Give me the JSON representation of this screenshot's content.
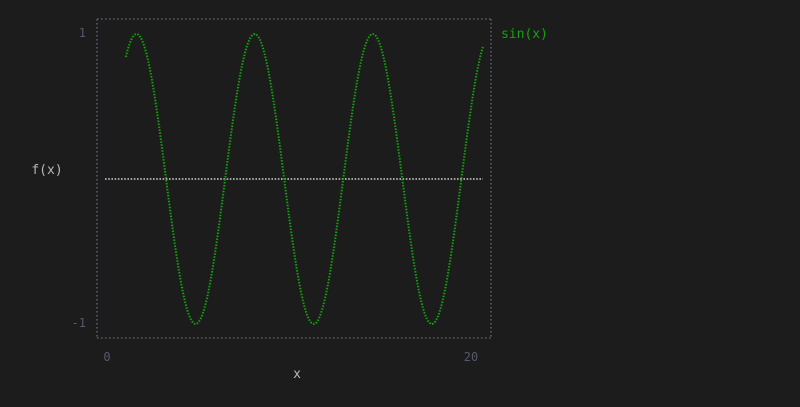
{
  "chart_data": {
    "type": "line",
    "title": "",
    "xlabel": "x",
    "ylabel": "f(x)",
    "xlim": [
      0,
      20
    ],
    "ylim": [
      -1,
      1
    ],
    "x_ticks": [
      "0",
      "20"
    ],
    "y_ticks": [
      "1",
      "-1"
    ],
    "grid": false,
    "legend": "top-right",
    "zero_line": true,
    "series": [
      {
        "name": "sin(x)",
        "function": "sin(x)",
        "x_range": [
          1,
          20
        ],
        "color": "#13a10e"
      }
    ]
  },
  "colors": {
    "background": "#1c1c1c",
    "frame": "#555a6a",
    "zero_line": "#d0d0d0",
    "series": "#13a10e"
  }
}
